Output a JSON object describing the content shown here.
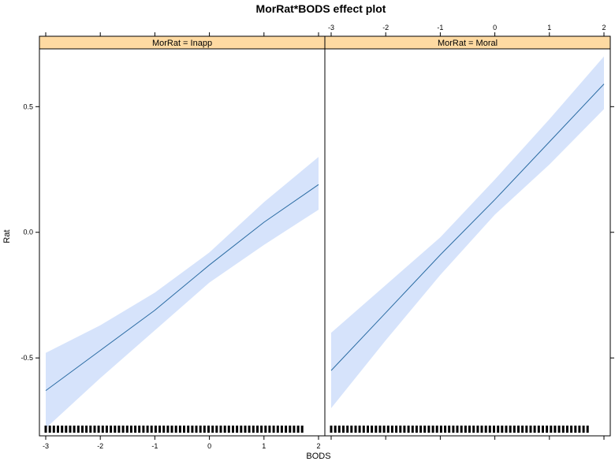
{
  "title": "MorRat*BODS effect plot",
  "xlabel": "BODS",
  "ylabel": "Rat",
  "chart_data": {
    "type": "line",
    "title": "MorRat*BODS effect plot",
    "xlabel": "BODS",
    "ylabel": "Rat",
    "xlim": [
      -3,
      2
    ],
    "ylim": [
      -0.81,
      0.73
    ],
    "x_ticks": [
      -3,
      -2,
      -1,
      0,
      1,
      2
    ],
    "y_ticks": [
      -0.5,
      0.0,
      0.5
    ],
    "x_tick_labels": [
      "-3",
      "-2",
      "-1",
      "0",
      "1",
      "2"
    ],
    "y_tick_labels": [
      "-0.5",
      "0.0",
      "0.5"
    ],
    "colors": {
      "line": "#2b6ca3",
      "band": "#d6e3fb",
      "strip": "#fedaa2",
      "rug": "#000000"
    },
    "panels": [
      {
        "strip_label": "MorRat = Inapp",
        "x": [
          -3,
          -2,
          -1,
          0,
          1,
          2
        ],
        "fit": [
          -0.63,
          -0.47,
          -0.31,
          -0.13,
          0.04,
          0.19
        ],
        "lower": [
          -0.78,
          -0.58,
          -0.39,
          -0.2,
          -0.05,
          0.09
        ],
        "upper": [
          -0.48,
          -0.37,
          -0.24,
          -0.08,
          0.12,
          0.3
        ],
        "rug_x": [
          -3,
          1.7
        ]
      },
      {
        "strip_label": "MorRat = Moral",
        "x": [
          -3,
          -2,
          -1,
          0,
          1,
          2
        ],
        "fit": [
          -0.55,
          -0.32,
          -0.09,
          0.13,
          0.36,
          0.59
        ],
        "lower": [
          -0.7,
          -0.43,
          -0.17,
          0.07,
          0.27,
          0.49
        ],
        "upper": [
          -0.4,
          -0.21,
          -0.02,
          0.21,
          0.45,
          0.7
        ],
        "rug_x": [
          -3,
          1.7
        ]
      }
    ]
  }
}
